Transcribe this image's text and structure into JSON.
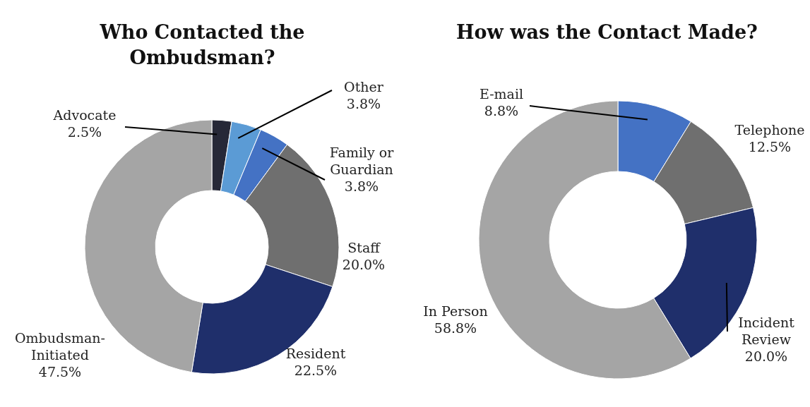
{
  "chart_data": [
    {
      "type": "donut",
      "title": "Who Contacted the Ombudsman?",
      "categories": [
        "Advocate",
        "Other",
        "Family or Guardian",
        "Staff",
        "Resident",
        "Ombudsman-Initiated"
      ],
      "values": [
        2.5,
        3.8,
        3.8,
        20.0,
        22.5,
        47.5
      ],
      "colors": [
        "#262837",
        "#5b9bd5",
        "#4472c4",
        "#6f6f6f",
        "#1f2f6b",
        "#a5a5a5"
      ],
      "value_labels": [
        "2.5%",
        "3.8%",
        "3.8%",
        "20.0%",
        "22.5%",
        "47.5%"
      ]
    },
    {
      "type": "donut",
      "title": "How was the Contact Made?",
      "categories": [
        "E-mail",
        "Telephone",
        "Incident Review",
        "In Person"
      ],
      "values": [
        8.8,
        12.5,
        20.0,
        58.8
      ],
      "colors": [
        "#4472c4",
        "#6f6f6f",
        "#1f2f6b",
        "#a5a5a5"
      ],
      "value_labels": [
        "8.8%",
        "12.5%",
        "20.0%",
        "58.8%"
      ]
    }
  ]
}
